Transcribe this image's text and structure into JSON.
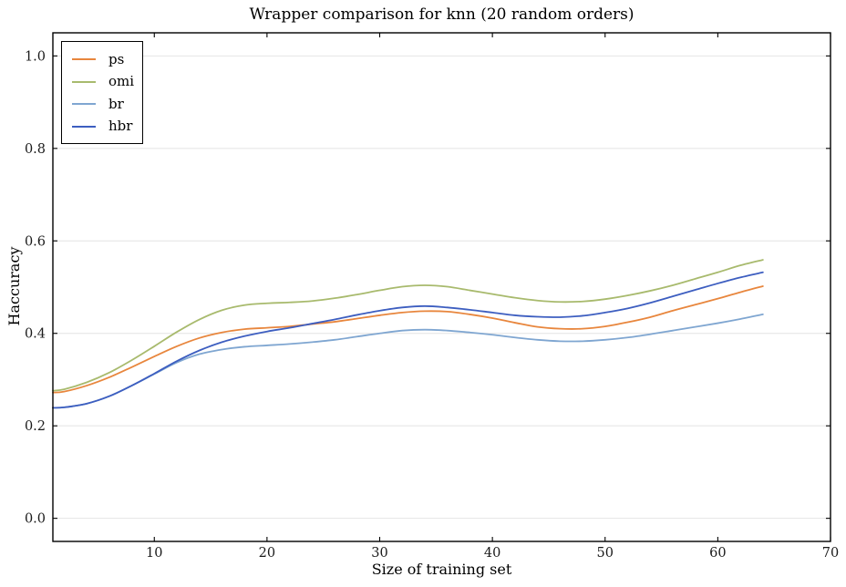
{
  "figure": {
    "title": "Wrapper comparison for knn (20 random orders)",
    "xlabel": "Size of training set",
    "ylabel": "Haccuracy"
  },
  "chart_data": {
    "type": "line",
    "title": "Wrapper comparison for knn (20 random orders)",
    "xlabel": "Size of training set",
    "ylabel": "Haccuracy",
    "xlim": [
      1,
      70
    ],
    "ylim": [
      -0.05,
      1.05
    ],
    "xticks": [
      10,
      20,
      30,
      40,
      50,
      60,
      70
    ],
    "xtick_labels": [
      "10",
      "20",
      "30",
      "40",
      "50",
      "60",
      "70"
    ],
    "yticks": [
      0.0,
      0.2,
      0.4,
      0.6,
      0.8,
      1.0
    ],
    "ytick_labels": [
      "0.0",
      "0.2",
      "0.4",
      "0.6",
      "0.8",
      "1.0"
    ],
    "grid": "horizontal-only",
    "grid_color": "#e4e4e4",
    "frame_color": "#000000",
    "legend_position": "upper-left",
    "x": [
      1,
      2,
      4,
      6,
      8,
      10,
      12,
      14,
      16,
      18,
      20,
      22,
      24,
      26,
      28,
      30,
      32,
      34,
      36,
      38,
      40,
      42,
      44,
      46,
      48,
      50,
      52,
      54,
      56,
      58,
      60,
      62,
      64
    ],
    "series": [
      {
        "name": "ps",
        "color": "#E8863D",
        "values": [
          0.272,
          0.274,
          0.287,
          0.305,
          0.327,
          0.35,
          0.372,
          0.39,
          0.402,
          0.409,
          0.412,
          0.415,
          0.42,
          0.425,
          0.432,
          0.439,
          0.445,
          0.448,
          0.447,
          0.441,
          0.433,
          0.423,
          0.414,
          0.41,
          0.41,
          0.415,
          0.424,
          0.435,
          0.449,
          0.462,
          0.475,
          0.489,
          0.502
        ]
      },
      {
        "name": "omi",
        "color": "#A8BA6D",
        "values": [
          0.276,
          0.279,
          0.294,
          0.315,
          0.342,
          0.372,
          0.403,
          0.43,
          0.45,
          0.461,
          0.465,
          0.467,
          0.47,
          0.476,
          0.484,
          0.493,
          0.501,
          0.504,
          0.501,
          0.493,
          0.485,
          0.477,
          0.471,
          0.468,
          0.469,
          0.474,
          0.482,
          0.492,
          0.504,
          0.518,
          0.532,
          0.547,
          0.559
        ]
      },
      {
        "name": "br",
        "color": "#7FA6D1",
        "values": [
          0.239,
          0.24,
          0.248,
          0.264,
          0.287,
          0.312,
          0.337,
          0.355,
          0.365,
          0.371,
          0.374,
          0.377,
          0.381,
          0.386,
          0.393,
          0.4,
          0.406,
          0.408,
          0.406,
          0.402,
          0.397,
          0.391,
          0.386,
          0.383,
          0.383,
          0.386,
          0.391,
          0.398,
          0.406,
          0.414,
          0.422,
          0.431,
          0.441
        ]
      },
      {
        "name": "hbr",
        "color": "#3D5EC0",
        "values": [
          0.239,
          0.24,
          0.248,
          0.264,
          0.287,
          0.313,
          0.34,
          0.363,
          0.381,
          0.394,
          0.404,
          0.412,
          0.421,
          0.43,
          0.44,
          0.449,
          0.456,
          0.459,
          0.456,
          0.451,
          0.445,
          0.439,
          0.436,
          0.435,
          0.438,
          0.445,
          0.454,
          0.466,
          0.48,
          0.494,
          0.508,
          0.521,
          0.532
        ]
      }
    ]
  }
}
